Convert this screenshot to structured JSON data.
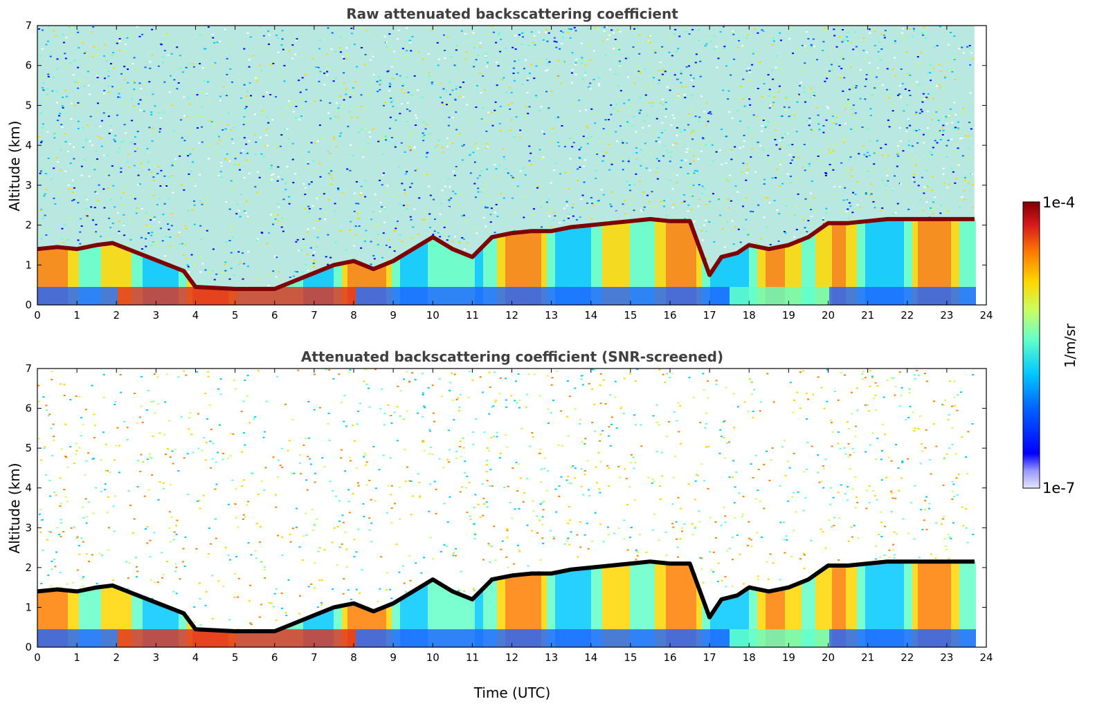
{
  "chart_data": [
    {
      "type": "heatmap",
      "title": "Raw attenuated backscattering coefficient",
      "xlabel": "",
      "ylabel": "Altitude (km)",
      "xlim": [
        0,
        24
      ],
      "ylim": [
        0,
        7
      ],
      "x_ticks": [
        "0",
        "1",
        "2",
        "3",
        "4",
        "5",
        "6",
        "7",
        "8",
        "9",
        "10",
        "11",
        "12",
        "13",
        "14",
        "15",
        "16",
        "17",
        "18",
        "19",
        "20",
        "21",
        "22",
        "23",
        "24"
      ],
      "y_ticks": [
        "0",
        "1",
        "2",
        "3",
        "4",
        "5",
        "6",
        "7"
      ],
      "data_end_time": 23.7,
      "screened": false,
      "cloud_layer": {
        "time_utc": [
          0,
          0.5,
          1,
          1.5,
          1.9,
          3.7,
          4,
          5,
          6,
          6.5,
          7,
          7.5,
          8,
          8.5,
          9,
          9.5,
          10,
          10.5,
          11,
          11.5,
          12,
          12.5,
          13,
          13.5,
          14,
          14.5,
          15,
          15.5,
          16,
          16.5,
          17,
          17.3,
          17.7,
          18,
          18.5,
          19,
          19.5,
          20,
          20.5,
          21,
          21.5,
          22,
          22.5,
          23,
          23.7
        ],
        "altitude_km": [
          1.4,
          1.45,
          1.4,
          1.5,
          1.55,
          0.85,
          0.45,
          0.4,
          0.4,
          0.6,
          0.8,
          1.0,
          1.1,
          0.9,
          1.1,
          1.4,
          1.7,
          1.4,
          1.2,
          1.7,
          1.8,
          1.85,
          1.85,
          1.95,
          2.0,
          2.05,
          2.1,
          2.15,
          2.1,
          2.1,
          0.75,
          1.2,
          1.3,
          1.5,
          1.4,
          1.5,
          1.7,
          2.05,
          2.05,
          2.1,
          2.15,
          2.15,
          2.15,
          2.15,
          2.15
        ]
      },
      "colorbar": {
        "min_label": "1e-7",
        "max_label": "1e-4",
        "unit": "1/m/sr",
        "scale": "log"
      }
    },
    {
      "type": "heatmap",
      "title": "Attenuated backscattering coefficient (SNR-screened)",
      "xlabel": "Time (UTC)",
      "ylabel": "Altitude (km)",
      "xlim": [
        0,
        24
      ],
      "ylim": [
        0,
        7
      ],
      "x_ticks": [
        "0",
        "1",
        "2",
        "3",
        "4",
        "5",
        "6",
        "7",
        "8",
        "9",
        "10",
        "11",
        "12",
        "13",
        "14",
        "15",
        "16",
        "17",
        "18",
        "19",
        "20",
        "21",
        "22",
        "23",
        "24"
      ],
      "y_ticks": [
        "0",
        "1",
        "2",
        "3",
        "4",
        "5",
        "6",
        "7"
      ],
      "data_end_time": 23.7,
      "screened": true,
      "cloud_layer": {
        "time_utc": [
          0,
          0.5,
          1,
          1.5,
          1.9,
          3.7,
          4,
          5,
          6,
          6.5,
          7,
          7.5,
          8,
          8.5,
          9,
          9.5,
          10,
          10.5,
          11,
          11.5,
          12,
          12.5,
          13,
          13.5,
          14,
          14.5,
          15,
          15.5,
          16,
          16.5,
          17,
          17.3,
          17.7,
          18,
          18.5,
          19,
          19.5,
          20,
          20.5,
          21,
          21.5,
          22,
          22.5,
          23,
          23.7
        ],
        "altitude_km": [
          1.4,
          1.45,
          1.4,
          1.5,
          1.55,
          0.85,
          0.45,
          0.4,
          0.4,
          0.6,
          0.8,
          1.0,
          1.1,
          0.9,
          1.1,
          1.4,
          1.7,
          1.4,
          1.2,
          1.7,
          1.8,
          1.85,
          1.85,
          1.95,
          2.0,
          2.05,
          2.1,
          2.15,
          2.1,
          2.1,
          0.75,
          1.2,
          1.3,
          1.5,
          1.4,
          1.5,
          1.7,
          2.05,
          2.05,
          2.1,
          2.15,
          2.15,
          2.15,
          2.15,
          2.15
        ]
      },
      "colorbar": {
        "min_label": "1e-7",
        "max_label": "1e-4",
        "unit": "1/m/sr",
        "scale": "log"
      }
    }
  ],
  "colorbar": {
    "max_label": "1e-4",
    "min_label": "1e-7",
    "unit_label": "1/m/sr",
    "colormap": [
      "#7f0000",
      "#d7191c",
      "#ff7f00",
      "#ffd700",
      "#c8ff64",
      "#64ffc8",
      "#00c8ff",
      "#0064ff",
      "#0000ff",
      "#9999ff",
      "#e6e6fa"
    ]
  }
}
